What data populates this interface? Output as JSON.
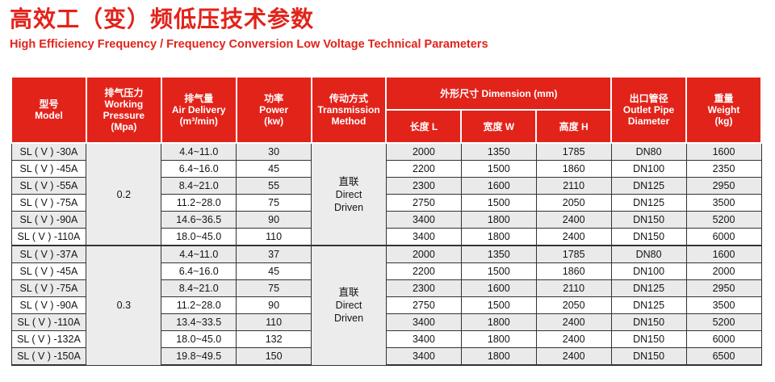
{
  "colors": {
    "accent_red": "#e2231a",
    "row_stripe": "#eaeaea",
    "merged_cell_bg": "#ececec",
    "grid_border": "#333333"
  },
  "header_block": {
    "title_zh": "高效工（变）频低压技术参数",
    "title_en": "High Efficiency Frequency / Frequency Conversion Low Voltage Technical Parameters"
  },
  "table": {
    "header": {
      "model": [
        "型号",
        "Model"
      ],
      "pressure": [
        "排气压力",
        "Working",
        "Pressure",
        "(Mpa)"
      ],
      "air": [
        "排气量",
        "Air Delivery",
        "(m³/min)"
      ],
      "power": [
        "功率",
        "Power",
        "(kw)"
      ],
      "transmission": [
        "传动方式",
        "Transmission",
        "Method"
      ],
      "dimension": "外形尺寸 Dimension (mm)",
      "dim_sub": [
        "长度 L",
        "宽度 W",
        "高度 H"
      ],
      "outlet": [
        "出口管径",
        "Outlet Pipe",
        "Diameter"
      ],
      "weight": [
        "重量",
        "Weight",
        "(kg)"
      ]
    },
    "groups": [
      {
        "pressure": "0.2",
        "transmission": [
          "直联",
          "Direct",
          "Driven"
        ],
        "rows": [
          [
            "SL ( V ) -30A",
            "4.4~11.0",
            "30",
            "2000",
            "1350",
            "1785",
            "DN80",
            "1600"
          ],
          [
            "SL ( V ) -45A",
            "6.4~16.0",
            "45",
            "2200",
            "1500",
            "1860",
            "DN100",
            "2350"
          ],
          [
            "SL ( V ) -55A",
            "8.4~21.0",
            "55",
            "2300",
            "1600",
            "2110",
            "DN125",
            "2950"
          ],
          [
            "SL ( V ) -75A",
            "11.2~28.0",
            "75",
            "2750",
            "1500",
            "2050",
            "DN125",
            "3500"
          ],
          [
            "SL ( V ) -90A",
            "14.6~36.5",
            "90",
            "3400",
            "1800",
            "2400",
            "DN150",
            "5200"
          ],
          [
            "SL ( V ) -110A",
            "18.0~45.0",
            "110",
            "3400",
            "1800",
            "2400",
            "DN150",
            "6000"
          ]
        ]
      },
      {
        "pressure": "0.3",
        "transmission": [
          "直联",
          "Direct",
          "Driven"
        ],
        "rows": [
          [
            "SL ( V ) -37A",
            "4.4~11.0",
            "37",
            "2000",
            "1350",
            "1785",
            "DN80",
            "1600"
          ],
          [
            "SL ( V ) -45A",
            "6.4~16.0",
            "45",
            "2200",
            "1500",
            "1860",
            "DN100",
            "2000"
          ],
          [
            "SL ( V ) -75A",
            "8.4~21.0",
            "75",
            "2300",
            "1600",
            "2110",
            "DN125",
            "2950"
          ],
          [
            "SL ( V ) -90A",
            "11.2~28.0",
            "90",
            "2750",
            "1500",
            "2050",
            "DN125",
            "3500"
          ],
          [
            "SL ( V ) -110A",
            "13.4~33.5",
            "110",
            "3400",
            "1800",
            "2400",
            "DN150",
            "5200"
          ],
          [
            "SL ( V ) -132A",
            "18.0~45.0",
            "132",
            "3400",
            "1800",
            "2400",
            "DN150",
            "6000"
          ],
          [
            "SL ( V ) -150A",
            "19.8~49.5",
            "150",
            "3400",
            "1800",
            "2400",
            "DN150",
            "6500"
          ]
        ]
      }
    ]
  }
}
